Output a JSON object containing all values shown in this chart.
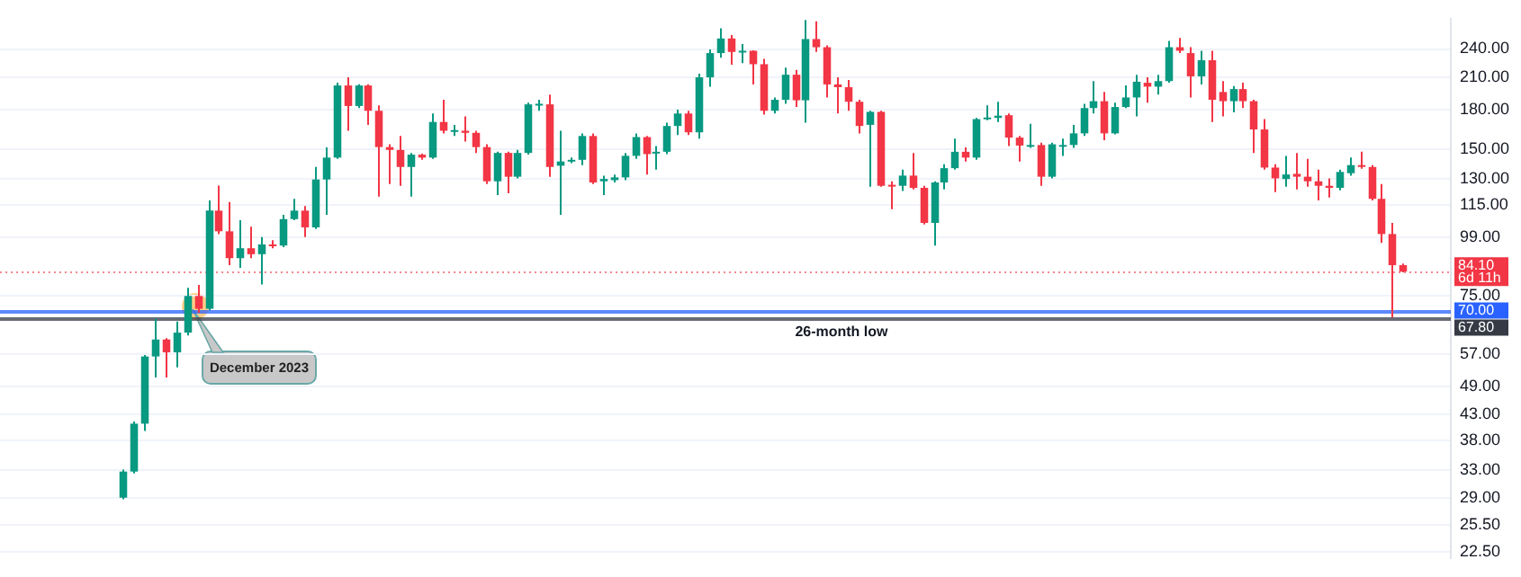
{
  "chart_data": {
    "type": "candlestick",
    "categories": [
      null,
      null,
      null,
      null,
      null,
      null,
      null,
      null,
      null,
      null,
      null,
      null,
      null,
      null,
      null,
      null,
      null,
      null,
      null,
      null,
      null,
      null,
      null,
      null,
      null,
      null,
      null,
      null,
      null,
      null,
      null,
      null,
      null,
      null,
      null,
      null,
      null,
      null,
      null,
      null,
      null,
      null,
      null,
      null,
      null,
      null,
      null,
      null,
      null,
      null,
      null,
      null,
      null,
      null,
      null,
      null,
      null,
      null,
      null,
      null,
      null,
      null,
      null,
      null,
      null,
      null,
      null,
      null,
      null,
      null,
      null,
      null,
      null,
      null,
      null,
      null,
      null,
      null,
      null,
      null,
      null,
      null,
      null,
      null,
      null,
      null,
      null,
      null,
      null,
      null,
      null,
      null,
      null,
      null,
      null,
      null,
      null,
      null,
      null,
      null,
      null,
      null,
      null,
      null,
      null,
      null,
      null,
      null,
      null,
      null,
      null,
      null,
      null,
      null,
      null,
      null,
      null,
      null,
      null,
      null,
      null,
      null,
      null,
      null,
      null,
      null,
      null,
      null,
      null,
      null,
      null,
      null,
      null,
      null,
      null,
      null
    ],
    "ohlc": [
      null,
      null,
      null,
      null,
      null,
      null,
      null,
      null,
      null,
      null,
      null,
      [
        29.0,
        33.1,
        28.8,
        32.8
      ],
      [
        32.8,
        41.5,
        32.5,
        41.1
      ],
      [
        41.1,
        56.8,
        39.7,
        56.4
      ],
      [
        56.4,
        67.4,
        51.1,
        61.1
      ],
      [
        61.1,
        61.5,
        51.1,
        57.5
      ],
      [
        57.5,
        66.5,
        53.6,
        63.1
      ],
      [
        63.1,
        77.9,
        62.3,
        75.0
      ],
      [
        75.0,
        79.0,
        69.3,
        70.6
      ],
      [
        70.6,
        117.6,
        70.1,
        112.1
      ],
      [
        112.1,
        126.1,
        100.4,
        101.7
      ],
      [
        101.7,
        116.7,
        86.7,
        89.6
      ],
      [
        89.6,
        107.2,
        85.6,
        93.9
      ],
      [
        93.9,
        103.9,
        89.6,
        91.3
      ],
      [
        91.3,
        99.0,
        79.2,
        95.6
      ],
      [
        95.6,
        97.5,
        93.9,
        95.1
      ],
      [
        95.1,
        109.9,
        94.4,
        107.7
      ],
      [
        107.7,
        118.5,
        107.2,
        112.1
      ],
      [
        112.1,
        114.5,
        99.0,
        103.6
      ],
      [
        103.6,
        137.7,
        102.8,
        129.8
      ],
      [
        129.8,
        151.0,
        109.9,
        143.9
      ],
      [
        143.9,
        204.7,
        143.1,
        202.1
      ],
      [
        202.1,
        210.0,
        163.3,
        183.5
      ],
      [
        183.5,
        203.2,
        181.7,
        202.1
      ],
      [
        202.1,
        203.2,
        167.9,
        179.4
      ],
      [
        179.4,
        184.0,
        119.8,
        151.2
      ],
      [
        151.2,
        153.2,
        127.0,
        149.2
      ],
      [
        149.2,
        159.3,
        126.0,
        137.7
      ],
      [
        137.7,
        147.1,
        119.8,
        145.9
      ],
      [
        145.9,
        146.5,
        142.4,
        143.9
      ],
      [
        143.9,
        177.1,
        143.1,
        170.2
      ],
      [
        170.2,
        188.9,
        161.3,
        163.3
      ],
      [
        162.8,
        167.9,
        159.3,
        163.8
      ],
      [
        163.3,
        174.8,
        155.2,
        161.7
      ],
      [
        161.7,
        163.3,
        147.1,
        151.2
      ],
      [
        151.2,
        153.2,
        127.0,
        128.7
      ],
      [
        128.7,
        147.9,
        120.7,
        147.1
      ],
      [
        147.1,
        147.9,
        121.7,
        131.5
      ],
      [
        131.5,
        149.2,
        130.5,
        147.1
      ],
      [
        147.1,
        186.3,
        145.9,
        184.9
      ],
      [
        184.0,
        188.9,
        179.4,
        185.4
      ],
      [
        184.9,
        193.7,
        131.5,
        137.7
      ],
      [
        138.5,
        163.3,
        109.9,
        141.3
      ],
      [
        141.3,
        143.9,
        140.2,
        142.4
      ],
      [
        142.4,
        161.3,
        138.9,
        159.3
      ],
      [
        159.3,
        161.3,
        127.0,
        128.0
      ],
      [
        128.7,
        132.2,
        120.7,
        130.1
      ],
      [
        129.4,
        132.9,
        128.0,
        131.1
      ],
      [
        131.1,
        147.1,
        129.4,
        145.1
      ],
      [
        145.1,
        161.3,
        143.1,
        158.5
      ],
      [
        158.5,
        159.3,
        132.9,
        146.3
      ],
      [
        146.7,
        151.9,
        136.0,
        147.9
      ],
      [
        147.9,
        169.7,
        146.3,
        167.0
      ],
      [
        167.0,
        180.3,
        160.1,
        177.1
      ],
      [
        177.1,
        179.4,
        160.1,
        162.1
      ],
      [
        162.1,
        213.7,
        157.3,
        210.0
      ],
      [
        210.0,
        239.5,
        201.0,
        235.4
      ],
      [
        235.4,
        264.5,
        230.3,
        252.2
      ],
      [
        252.2,
        256.3,
        222.8,
        236.7
      ],
      [
        236.7,
        245.7,
        224.6,
        238.0
      ],
      [
        238.0,
        238.5,
        203.1,
        223.4
      ],
      [
        223.4,
        229.1,
        176.2,
        179.4
      ],
      [
        179.4,
        191.0,
        177.1,
        188.9
      ],
      [
        188.9,
        219.8,
        185.4,
        212.6
      ],
      [
        212.6,
        217.4,
        182.6,
        188.5
      ],
      [
        188.5,
        275.0,
        169.7,
        251.5
      ],
      [
        251.5,
        273.4,
        236.7,
        242.0
      ],
      [
        242.0,
        244.0,
        191.0,
        203.1
      ],
      [
        203.1,
        210.0,
        177.1,
        200.5
      ],
      [
        200.5,
        207.3,
        179.4,
        187.2
      ],
      [
        187.2,
        188.9,
        161.3,
        167.0
      ],
      [
        167.9,
        179.4,
        125.4,
        178.5
      ],
      [
        178.5,
        179.4,
        125.4,
        126.0
      ],
      [
        126.6,
        128.7,
        112.9,
        125.7
      ],
      [
        126.0,
        136.0,
        123.0,
        132.2
      ],
      [
        132.2,
        147.1,
        123.9,
        124.8
      ],
      [
        124.8,
        126.0,
        105.0,
        105.8
      ],
      [
        105.8,
        128.7,
        95.1,
        128.0
      ],
      [
        128.0,
        139.5,
        123.9,
        136.9
      ],
      [
        136.9,
        157.3,
        136.0,
        147.9
      ],
      [
        147.9,
        151.0,
        141.3,
        143.9
      ],
      [
        143.9,
        173.5,
        142.4,
        172.5
      ],
      [
        172.9,
        184.0,
        171.6,
        173.8
      ],
      [
        173.5,
        187.2,
        170.2,
        175.3
      ],
      [
        175.7,
        177.1,
        151.9,
        158.1
      ],
      [
        158.1,
        159.3,
        141.3,
        152.3
      ],
      [
        151.9,
        168.8,
        150.6,
        152.7
      ],
      [
        152.7,
        154.4,
        126.0,
        131.5
      ],
      [
        131.5,
        154.4,
        130.5,
        153.2
      ],
      [
        151.9,
        157.3,
        145.1,
        152.7
      ],
      [
        152.7,
        167.9,
        150.6,
        161.3
      ],
      [
        161.3,
        185.4,
        159.3,
        181.7
      ],
      [
        181.7,
        206.3,
        177.1,
        187.7
      ],
      [
        187.7,
        196.0,
        156.1,
        161.3
      ],
      [
        161.3,
        186.3,
        160.5,
        182.6
      ],
      [
        182.6,
        202.1,
        181.7,
        191.0
      ],
      [
        191.0,
        212.6,
        174.8,
        205.7
      ],
      [
        204.7,
        210.0,
        186.3,
        201.0
      ],
      [
        201.0,
        212.6,
        193.7,
        206.3
      ],
      [
        206.3,
        249.4,
        204.7,
        242.0
      ],
      [
        242.0,
        252.9,
        235.4,
        238.0
      ],
      [
        235.4,
        242.0,
        191.0,
        211.0
      ],
      [
        211.0,
        238.0,
        203.1,
        227.6
      ],
      [
        227.6,
        238.0,
        170.2,
        188.9
      ],
      [
        196.0,
        206.3,
        174.8,
        187.7
      ],
      [
        187.7,
        201.6,
        178.0,
        198.7
      ],
      [
        198.7,
        204.7,
        181.7,
        187.7
      ],
      [
        187.7,
        188.9,
        147.1,
        164.3
      ],
      [
        164.3,
        172.5,
        136.0,
        137.3
      ],
      [
        137.3,
        139.5,
        122.3,
        130.5
      ],
      [
        130.1,
        145.1,
        125.4,
        132.9
      ],
      [
        133.3,
        147.1,
        123.9,
        131.5
      ],
      [
        131.5,
        143.1,
        125.4,
        128.7
      ],
      [
        128.7,
        136.0,
        117.6,
        126.0
      ],
      [
        126.0,
        130.5,
        119.3,
        124.8
      ],
      [
        124.8,
        136.0,
        123.3,
        134.5
      ],
      [
        133.7,
        143.9,
        132.2,
        138.9
      ],
      [
        138.9,
        147.9,
        136.5,
        137.7
      ],
      [
        137.7,
        138.9,
        117.6,
        118.5
      ],
      [
        118.5,
        127.0,
        96.3,
        100.4
      ],
      [
        100.4,
        105.8,
        67.8,
        86.7
      ],
      [
        86.7,
        87.4,
        83.8,
        84.1
      ],
      null,
      null,
      null,
      null
    ],
    "colors": [
      null,
      null,
      null,
      null,
      null,
      null,
      null,
      null,
      null,
      null,
      null,
      "#089981",
      "#089981",
      "#089981",
      "#089981",
      "#f23645",
      "#089981",
      "#089981",
      "#f23645",
      "#089981",
      "#f23645",
      "#f23645",
      "#089981",
      "#f23645",
      "#089981",
      "#f23645",
      "#089981",
      "#089981",
      "#f23645",
      "#089981",
      "#089981",
      "#089981",
      "#f23645",
      "#089981",
      "#f23645",
      "#f23645",
      "#f23645",
      "#f23645",
      "#089981",
      "#f23645",
      "#089981",
      "#f23645",
      "#089981",
      "#f23645",
      "#f23645",
      "#f23645",
      "#089981",
      "#f23645",
      "#089981",
      "#089981",
      "#089981",
      "#f23645",
      "#089981",
      "#089981",
      "#089981",
      "#f23645",
      "#089981",
      "#089981",
      "#089981",
      "#089981",
      "#f23645",
      "#089981",
      "#089981",
      "#089981",
      "#f23645",
      "#089981",
      "#089981",
      "#089981",
      "#f23645",
      "#089981",
      "#f23645",
      "#f23645",
      "#089981",
      "#089981",
      "#f23645",
      "#089981",
      "#f23645",
      "#f23645",
      "#f23645",
      "#f23645",
      "#f23645",
      "#089981",
      "#f23645",
      "#f23645",
      "#089981",
      "#f23645",
      "#f23645",
      "#089981",
      "#089981",
      "#089981",
      "#f23645",
      "#089981",
      "#089981",
      "#089981",
      "#f23645",
      "#f23645",
      "#089981",
      "#f23645",
      "#089981",
      "#089981",
      "#089981",
      "#089981",
      "#089981",
      "#f23645",
      "#089981",
      "#089981",
      "#089981",
      "#f23645",
      "#089981",
      "#089981",
      "#f23645",
      "#f23645",
      "#089981",
      "#f23645",
      "#f23645",
      "#089981",
      "#f23645",
      "#f23645",
      "#f23645",
      "#f23645",
      "#089981",
      "#f23645",
      "#f23645",
      "#f23645",
      "#f23645",
      "#089981",
      "#089981",
      "#f23645",
      "#f23645",
      "#f23645",
      "#f23645",
      "#f23645",
      null,
      null,
      null,
      null
    ],
    "ylim": [
      21.8,
      276.8
    ],
    "yticks": [
      {
        "value": 22.5,
        "label": "22.50"
      },
      {
        "value": 25.5,
        "label": "25.50"
      },
      {
        "value": 29,
        "label": "29.00"
      },
      {
        "value": 33,
        "label": "33.00"
      },
      {
        "value": 38,
        "label": "38.00"
      },
      {
        "value": 43,
        "label": "43.00"
      },
      {
        "value": 49,
        "label": "49.00"
      },
      {
        "value": 57,
        "label": "57.00"
      },
      {
        "value": 75,
        "label": "75.00"
      },
      {
        "value": 99,
        "label": "99.00"
      },
      {
        "value": 115,
        "label": "115.00"
      },
      {
        "value": 130,
        "label": "130.00"
      },
      {
        "value": 150,
        "label": "150.00"
      },
      {
        "value": 180,
        "label": "180.00"
      },
      {
        "value": 210,
        "label": "210.00"
      },
      {
        "value": 240,
        "label": "240.00"
      }
    ],
    "log": "y",
    "grid": "y",
    "tick_labels": "y",
    "ref_lines": [
      {
        "axis": "y",
        "value": 84.1,
        "label": "84.10\n6d 11h",
        "color": "#f23645",
        "line_style": "dotted"
      },
      {
        "axis": "y",
        "value": 70,
        "label": "70.00",
        "color": "#2962ff",
        "line_style": "solid"
      },
      {
        "axis": "y",
        "value": 67.8,
        "label": "67.80",
        "color": "#363a45",
        "line_style": "solid"
      }
    ],
    "annotations": [
      "December 2023",
      {
        "text": "26-month low",
        "y": 67.8
      }
    ]
  }
}
